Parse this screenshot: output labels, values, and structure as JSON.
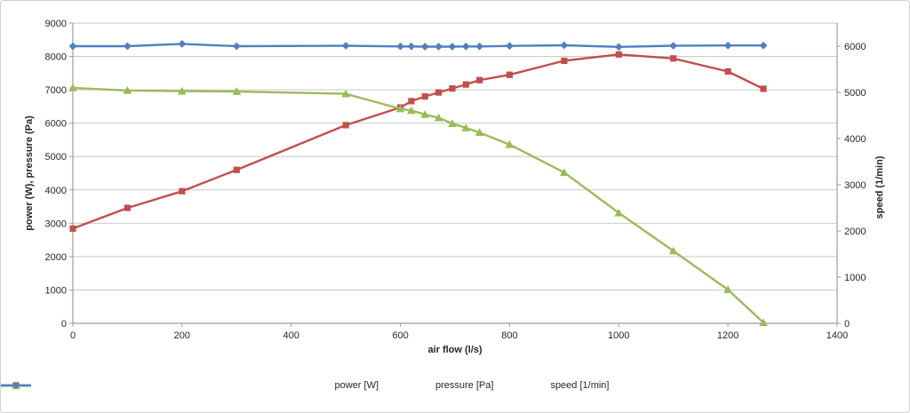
{
  "chart_data": {
    "type": "line",
    "title": "",
    "xlabel": "air flow (l/s)",
    "ylabel_left": "power (W), pressure (Pa)",
    "ylabel_right": "speed (1/min)",
    "xlim": [
      0,
      1400
    ],
    "ylim_left": [
      0,
      9000
    ],
    "ylim_right": [
      0,
      6500
    ],
    "x_ticks": [
      0,
      200,
      400,
      600,
      800,
      1000,
      1200,
      1400
    ],
    "y_left_ticks": [
      0,
      1000,
      2000,
      3000,
      4000,
      5000,
      6000,
      7000,
      8000,
      9000
    ],
    "y_right_ticks": [
      0,
      1000,
      2000,
      3000,
      4000,
      5000,
      6000
    ],
    "grid": "horizontal-only",
    "legend_position": "bottom-center",
    "x": [
      0,
      100,
      200,
      300,
      500,
      600,
      620,
      645,
      670,
      695,
      720,
      745,
      800,
      900,
      1000,
      1100,
      1200,
      1265
    ],
    "series": [
      {
        "id": "power",
        "name": "power [W]",
        "axis": "left",
        "marker": "square",
        "color": "#C0504D",
        "values": [
          2840,
          3460,
          3960,
          4600,
          5940,
          6470,
          6660,
          6800,
          6920,
          7040,
          7160,
          7290,
          7450,
          7870,
          8060,
          7940,
          7550,
          7030
        ]
      },
      {
        "id": "pressure",
        "name": "pressure [Pa]",
        "axis": "left",
        "marker": "triangle",
        "color": "#9BBB59",
        "values": [
          7060,
          6980,
          6960,
          6950,
          6880,
          6430,
          6380,
          6260,
          6160,
          5990,
          5860,
          5720,
          5360,
          4520,
          3310,
          2170,
          1010,
          20
        ]
      },
      {
        "id": "speed",
        "name": "speed [1/min]",
        "axis": "right",
        "marker": "diamond",
        "color": "#4F81BD",
        "values": [
          6000,
          6000,
          6050,
          6000,
          6010,
          5995,
          5995,
          5990,
          5990,
          5990,
          5995,
          5995,
          6005,
          6020,
          5985,
          6010,
          6015,
          6015
        ]
      }
    ],
    "colors": {
      "background": "#FFFFFF",
      "grid": "#C9C9C9",
      "axis": "#9E9E9E",
      "text": "#262626",
      "border": "#CFCFCF"
    }
  }
}
